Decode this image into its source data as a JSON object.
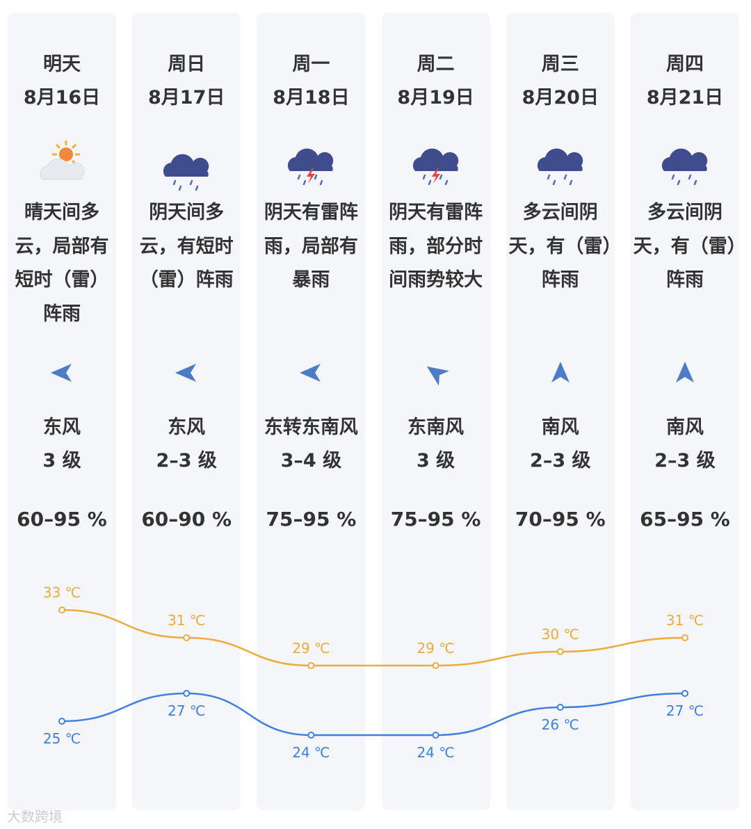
{
  "days": [
    {
      "weekday": "明天",
      "date": "8月16日",
      "description": "晴天间多云，局部有短时（雷）阵雨",
      "wind": "东风",
      "wind_level": "3 级",
      "humidity": "60–95 %"
    },
    {
      "weekday": "周日",
      "date": "8月17日",
      "description": "阴天间多云，有短时（雷）阵雨",
      "wind": "东风",
      "wind_level": "2–3 级",
      "humidity": "60–90 %"
    },
    {
      "weekday": "周一",
      "date": "8月18日",
      "description": "阴天有雷阵雨，局部有暴雨",
      "wind": "东转东南风",
      "wind_level": "3–4 级",
      "humidity": "75–95 %"
    },
    {
      "weekday": "周二",
      "date": "8月19日",
      "description": "阴天有雷阵雨，部分时间雨势较大",
      "wind": "东南风",
      "wind_level": "3 级",
      "humidity": "75–95 %"
    },
    {
      "weekday": "周三",
      "date": "8月20日",
      "description": "多云间阴天，有（雷）阵雨",
      "wind": "南风",
      "wind_level": "2–3 级",
      "humidity": "70–95 %"
    },
    {
      "weekday": "周四",
      "date": "8月21日",
      "description": "多云间阴天，有（雷）阵雨",
      "wind": "南风",
      "wind_level": "2–3 级",
      "humidity": "65–95 %"
    }
  ],
  "temperature": {
    "high": {
      "color": "#eeaa3c",
      "values": [
        33,
        31,
        29,
        29,
        30,
        31
      ],
      "value_labels": [
        "33 ℃",
        "31 ℃",
        "29 ℃",
        "29 ℃",
        "30 ℃",
        "31 ℃"
      ]
    },
    "low": {
      "color": "#3d7fe2",
      "values": [
        25,
        27,
        24,
        24,
        26,
        27
      ],
      "value_labels": [
        "25 ℃",
        "27 ℃",
        "24 ℃",
        "24 ℃",
        "26 ℃",
        "27 ℃"
      ]
    }
  },
  "watermark": "大数跨境"
}
